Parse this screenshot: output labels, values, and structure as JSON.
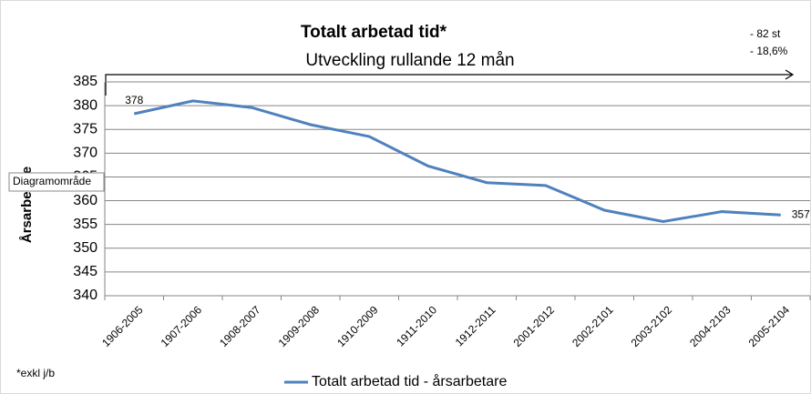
{
  "chart_data": {
    "type": "line",
    "title": "Totalt arbetad tid*",
    "subtitle": "Utveckling rullande 12 mån",
    "annotations": [
      "- 82 st",
      "- 18,6%"
    ],
    "ylabel": "Årsarbetare",
    "tooltip": "Diagramområde",
    "footnote": "*exkl j/b",
    "categories": [
      "1906-2005",
      "1907-2006",
      "1908-2007",
      "1909-2008",
      "1910-2009",
      "1911-2010",
      "1912-2011",
      "2001-2012",
      "2002-2101",
      "2003-2102",
      "2004-2103",
      "2005-2104"
    ],
    "series": [
      {
        "name": "Totalt arbetad tid -  årsarbetare",
        "color": "#4f81bd",
        "values": [
          378.3,
          381,
          379.6,
          376,
          373.5,
          367.3,
          363.8,
          363.2,
          358,
          355.6,
          357.7,
          357
        ],
        "value_labels": [
          "378",
          null,
          null,
          null,
          null,
          null,
          null,
          null,
          null,
          null,
          null,
          "357"
        ]
      }
    ],
    "ylim": [
      340,
      385
    ],
    "yticks": [
      340,
      345,
      350,
      355,
      360,
      365,
      370,
      375,
      380,
      385
    ],
    "grid": true
  }
}
